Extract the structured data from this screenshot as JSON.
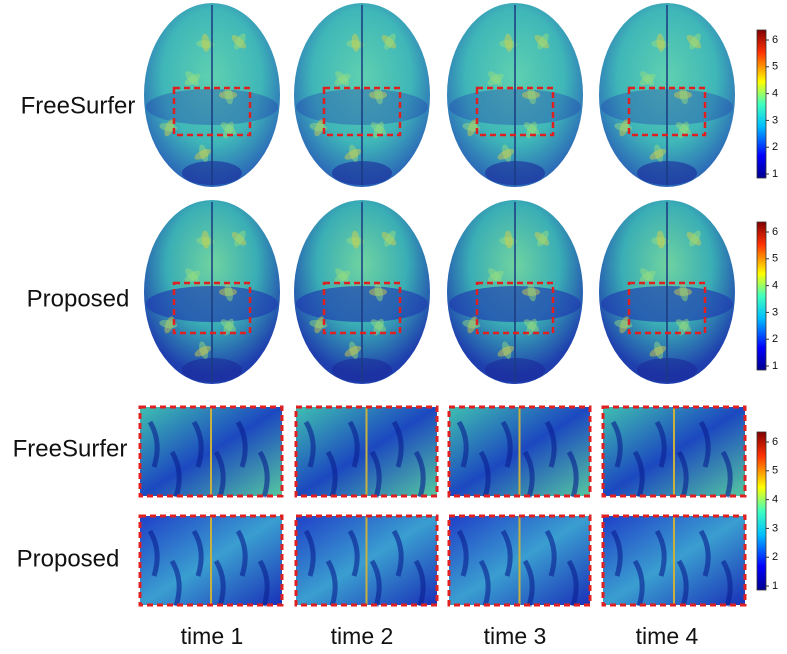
{
  "rows": [
    "FreeSurfer",
    "Proposed",
    "FreeSurfer",
    "Proposed"
  ],
  "columns": [
    "time 1",
    "time 2",
    "time 3",
    "time 4"
  ],
  "colorbars": [
    {
      "ticks": [
        1,
        2,
        3,
        4,
        5,
        6
      ]
    },
    {
      "ticks": [
        1,
        2,
        3,
        4,
        5,
        6
      ]
    },
    {
      "ticks": [
        1,
        2,
        3,
        4,
        5,
        6
      ]
    }
  ]
}
